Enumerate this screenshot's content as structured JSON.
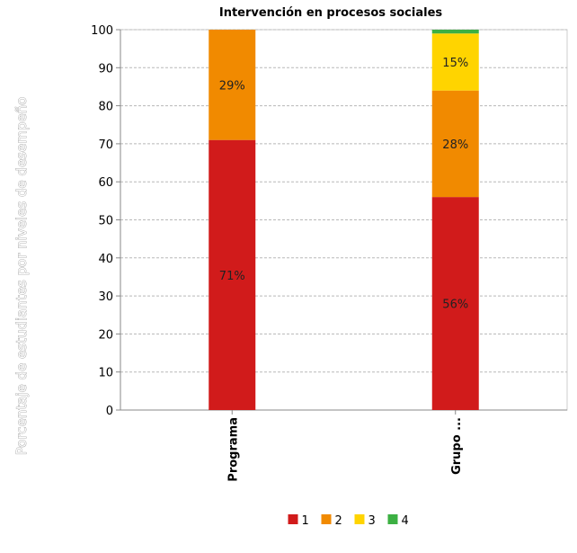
{
  "chart_data": {
    "type": "bar",
    "stacked": true,
    "title": "Intervención en procesos sociales",
    "xlabel": "",
    "ylabel": "Porcentaje de estudiantes por niveles de desempeño",
    "ylim": [
      0,
      100
    ],
    "yticks": [
      0,
      10,
      20,
      30,
      40,
      50,
      60,
      70,
      80,
      90,
      100
    ],
    "grid": true,
    "legend_position": "bottom",
    "categories": [
      "Programa",
      "Grupo ..."
    ],
    "series": [
      {
        "name": "1",
        "color": "#d11b1b",
        "values": [
          71,
          56
        ],
        "labels": [
          "71%",
          "56%"
        ]
      },
      {
        "name": "2",
        "color": "#f18a00",
        "values": [
          29,
          28
        ],
        "labels": [
          "29%",
          "28%"
        ]
      },
      {
        "name": "3",
        "color": "#ffd400",
        "values": [
          0,
          15
        ],
        "labels": [
          "",
          "15%"
        ]
      },
      {
        "name": "4",
        "color": "#3cb043",
        "values": [
          0,
          1
        ],
        "labels": [
          "",
          ""
        ]
      }
    ]
  }
}
